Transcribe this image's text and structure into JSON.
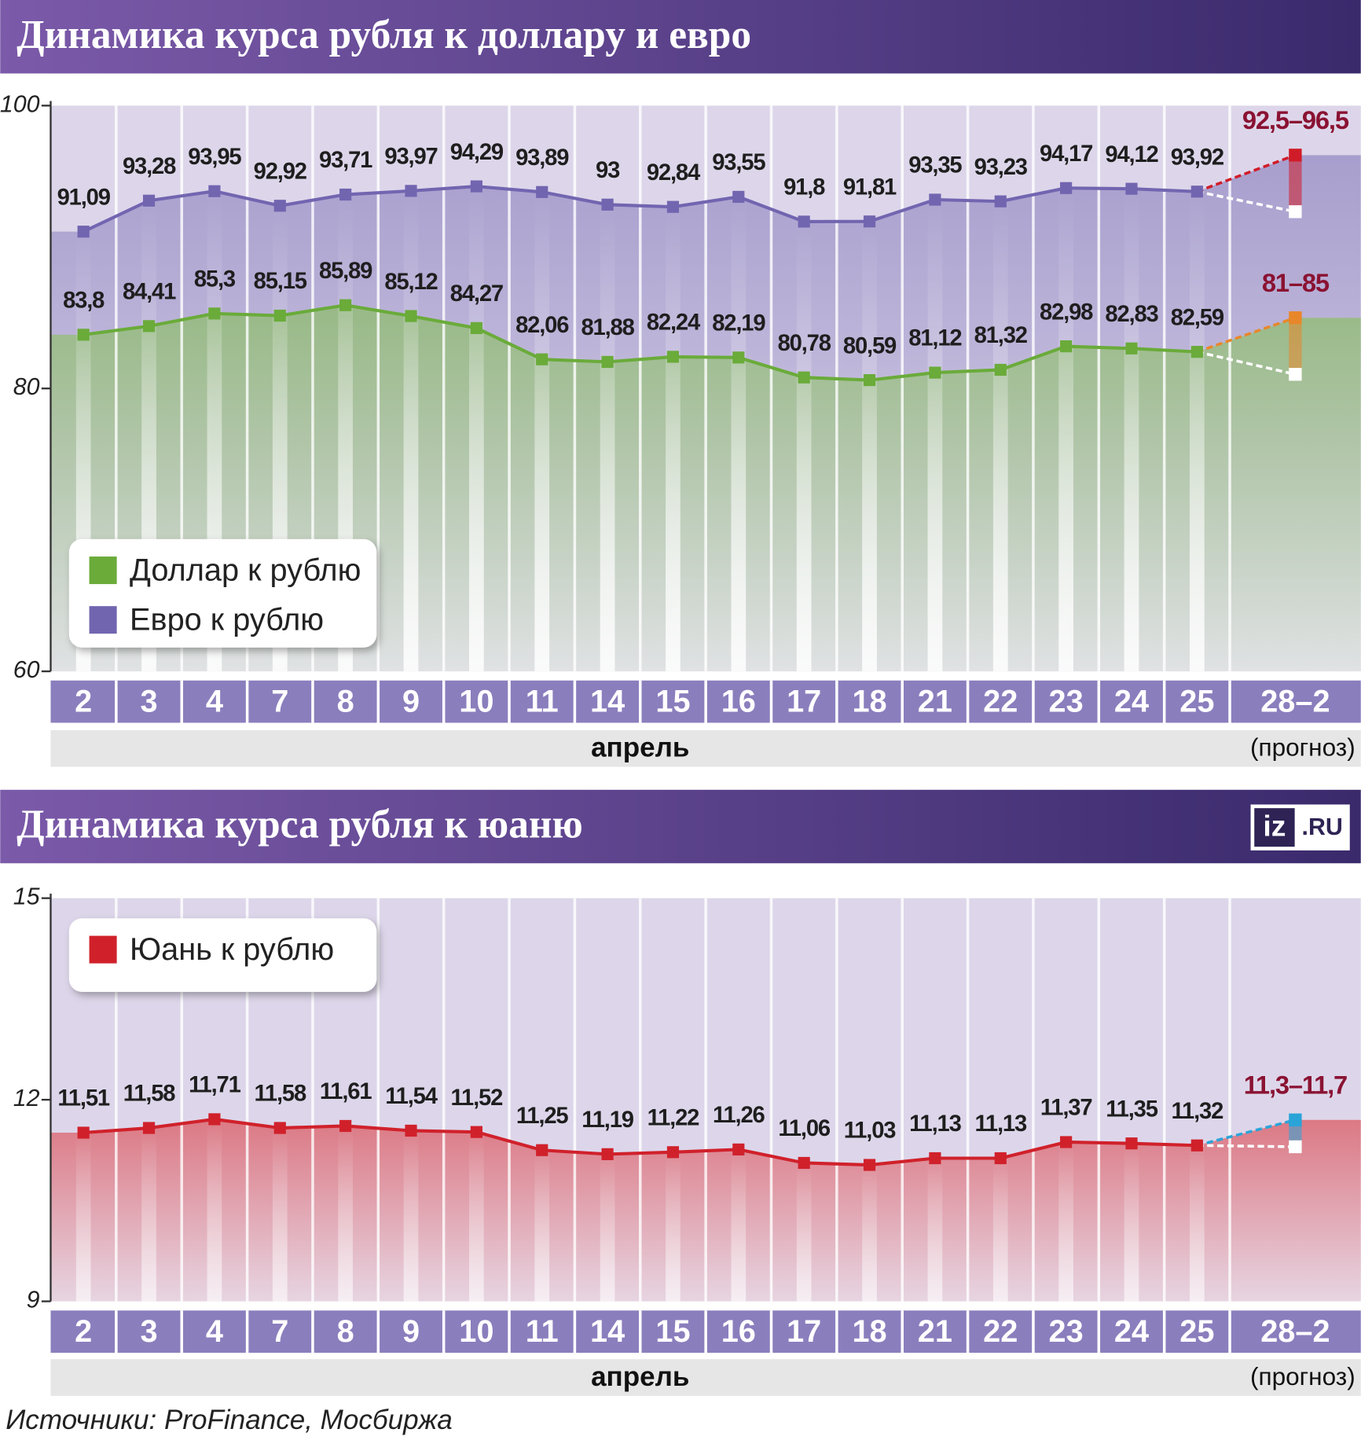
{
  "source": "Источники: ProFinance, Мосбиржа",
  "logo": {
    "left": "iz",
    "right": ".RU"
  },
  "chart_data": [
    {
      "type": "line",
      "title": "Динамика курса рубля к доллару и евро",
      "categories": [
        "2",
        "3",
        "4",
        "7",
        "8",
        "9",
        "10",
        "11",
        "14",
        "15",
        "16",
        "17",
        "18",
        "21",
        "22",
        "23",
        "24",
        "25",
        "28–2"
      ],
      "xlabel": "апрель",
      "forecast_note": "(прогноз)",
      "ylim": [
        60,
        100
      ],
      "yticks": [
        60,
        80,
        100
      ],
      "series": [
        {
          "name": "Доллар к рублю",
          "color": "#6aab3a",
          "forecast_color": "#e8872a",
          "values": [
            83.8,
            84.41,
            85.3,
            85.15,
            85.89,
            85.12,
            84.27,
            82.06,
            81.88,
            82.24,
            82.19,
            80.78,
            80.59,
            81.12,
            81.32,
            82.98,
            82.83,
            82.59,
            null
          ],
          "value_labels": [
            "83,8",
            "84,41",
            "85,3",
            "85,15",
            "85,89",
            "85,12",
            "84,27",
            "82,06",
            "81,88",
            "82,24",
            "82,19",
            "80,78",
            "80,59",
            "81,12",
            "81,32",
            "82,98",
            "82,83",
            "82,59",
            null
          ],
          "forecast": {
            "low": 81,
            "high": 85,
            "label": "81–85"
          }
        },
        {
          "name": "Евро к рублю",
          "color": "#7265b0",
          "forecast_color": "#d01c28",
          "values": [
            91.09,
            93.28,
            93.95,
            92.92,
            93.71,
            93.97,
            94.29,
            93.89,
            93,
            92.84,
            93.55,
            91.8,
            91.81,
            93.35,
            93.23,
            94.17,
            94.12,
            93.92,
            null
          ],
          "value_labels": [
            "91,09",
            "93,28",
            "93,95",
            "92,92",
            "93,71",
            "93,97",
            "94,29",
            "93,89",
            "93",
            "92,84",
            "93,55",
            "91,8",
            "91,81",
            "93,35",
            "93,23",
            "94,17",
            "94,12",
            "93,92",
            null
          ],
          "forecast": {
            "low": 92.5,
            "high": 96.5,
            "label": "92,5–96,5"
          }
        }
      ]
    },
    {
      "type": "line",
      "title": "Динамика курса рубля к юаню",
      "categories": [
        "2",
        "3",
        "4",
        "7",
        "8",
        "9",
        "10",
        "11",
        "14",
        "15",
        "16",
        "17",
        "18",
        "21",
        "22",
        "23",
        "24",
        "25",
        "28–2"
      ],
      "xlabel": "апрель",
      "forecast_note": "(прогноз)",
      "ylim": [
        9,
        15
      ],
      "yticks": [
        9,
        12,
        15
      ],
      "series": [
        {
          "name": "Юань к рублю",
          "color": "#d0212b",
          "forecast_color": "#2aa4d8",
          "values": [
            11.51,
            11.58,
            11.71,
            11.58,
            11.61,
            11.54,
            11.52,
            11.25,
            11.19,
            11.22,
            11.26,
            11.06,
            11.03,
            11.13,
            11.13,
            11.37,
            11.35,
            11.32,
            null
          ],
          "value_labels": [
            "11,51",
            "11,58",
            "11,71",
            "11,58",
            "11,61",
            "11,54",
            "11,52",
            "11,25",
            "11,19",
            "11,22",
            "11,26",
            "11,06",
            "11,03",
            "11,13",
            "11,13",
            "11,37",
            "11,35",
            "11,32",
            null
          ],
          "forecast": {
            "low": 11.3,
            "high": 11.7,
            "label": "11,3–11,7"
          }
        }
      ]
    }
  ]
}
